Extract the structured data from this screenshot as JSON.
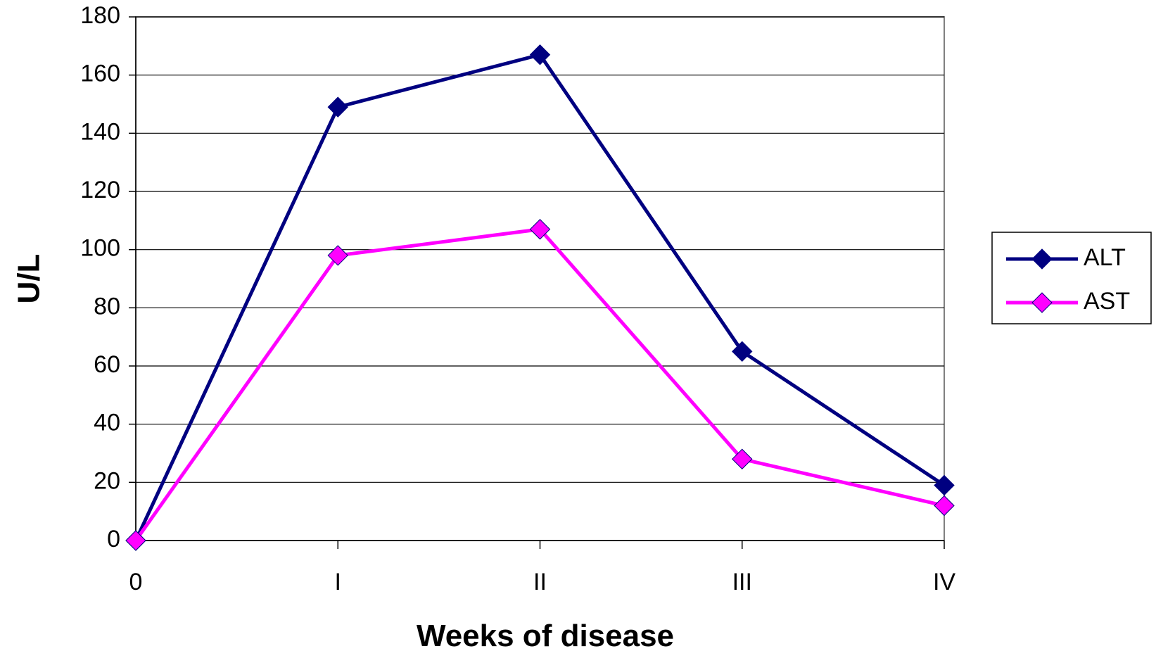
{
  "chart_data": {
    "type": "line",
    "categories": [
      "0",
      "I",
      "II",
      "III",
      "IV"
    ],
    "series": [
      {
        "name": "ALT",
        "values": [
          0,
          149,
          167,
          65,
          19
        ],
        "color": "#000080"
      },
      {
        "name": "AST",
        "values": [
          0,
          98,
          107,
          28,
          12
        ],
        "color": "#ff00ff"
      }
    ],
    "title": "",
    "xlabel": "Weeks of disease",
    "ylabel": "U/L",
    "ylim": [
      0,
      180
    ],
    "ytick_step": 20,
    "yticks": [
      "0",
      "20",
      "40",
      "60",
      "80",
      "100",
      "120",
      "140",
      "160",
      "180"
    ],
    "grid": true,
    "legend_position": "right",
    "marker": "diamond"
  }
}
